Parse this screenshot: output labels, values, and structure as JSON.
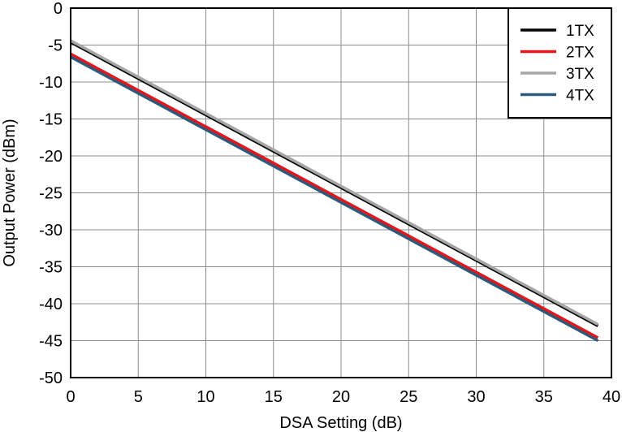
{
  "chart_data": {
    "type": "line",
    "title": "",
    "xlabel": "DSA Setting (dB)",
    "ylabel": "Output Power (dBm)",
    "xlim": [
      0,
      40
    ],
    "ylim": [
      -50,
      0
    ],
    "xticks": [
      "0",
      "5",
      "10",
      "15",
      "20",
      "25",
      "30",
      "35",
      "40"
    ],
    "yticks": [
      "0",
      "-5",
      "-10",
      "-15",
      "-20",
      "-25",
      "-30",
      "-35",
      "-40",
      "-45",
      "-50"
    ],
    "grid": true,
    "legend_position": "top-right",
    "series": [
      {
        "name": "1TX",
        "color": "#000000",
        "x": [
          0,
          39
        ],
        "y": [
          -4.6,
          -43.0
        ]
      },
      {
        "name": "2TX",
        "color": "#e8141b",
        "x": [
          0,
          39
        ],
        "y": [
          -6.2,
          -44.6
        ]
      },
      {
        "name": "3TX",
        "color": "#a6a6a6",
        "x": [
          0,
          39
        ],
        "y": [
          -4.4,
          -42.8
        ]
      },
      {
        "name": "4TX",
        "color": "#2e5a7a",
        "x": [
          0,
          39
        ],
        "y": [
          -6.6,
          -45.0
        ]
      }
    ]
  }
}
